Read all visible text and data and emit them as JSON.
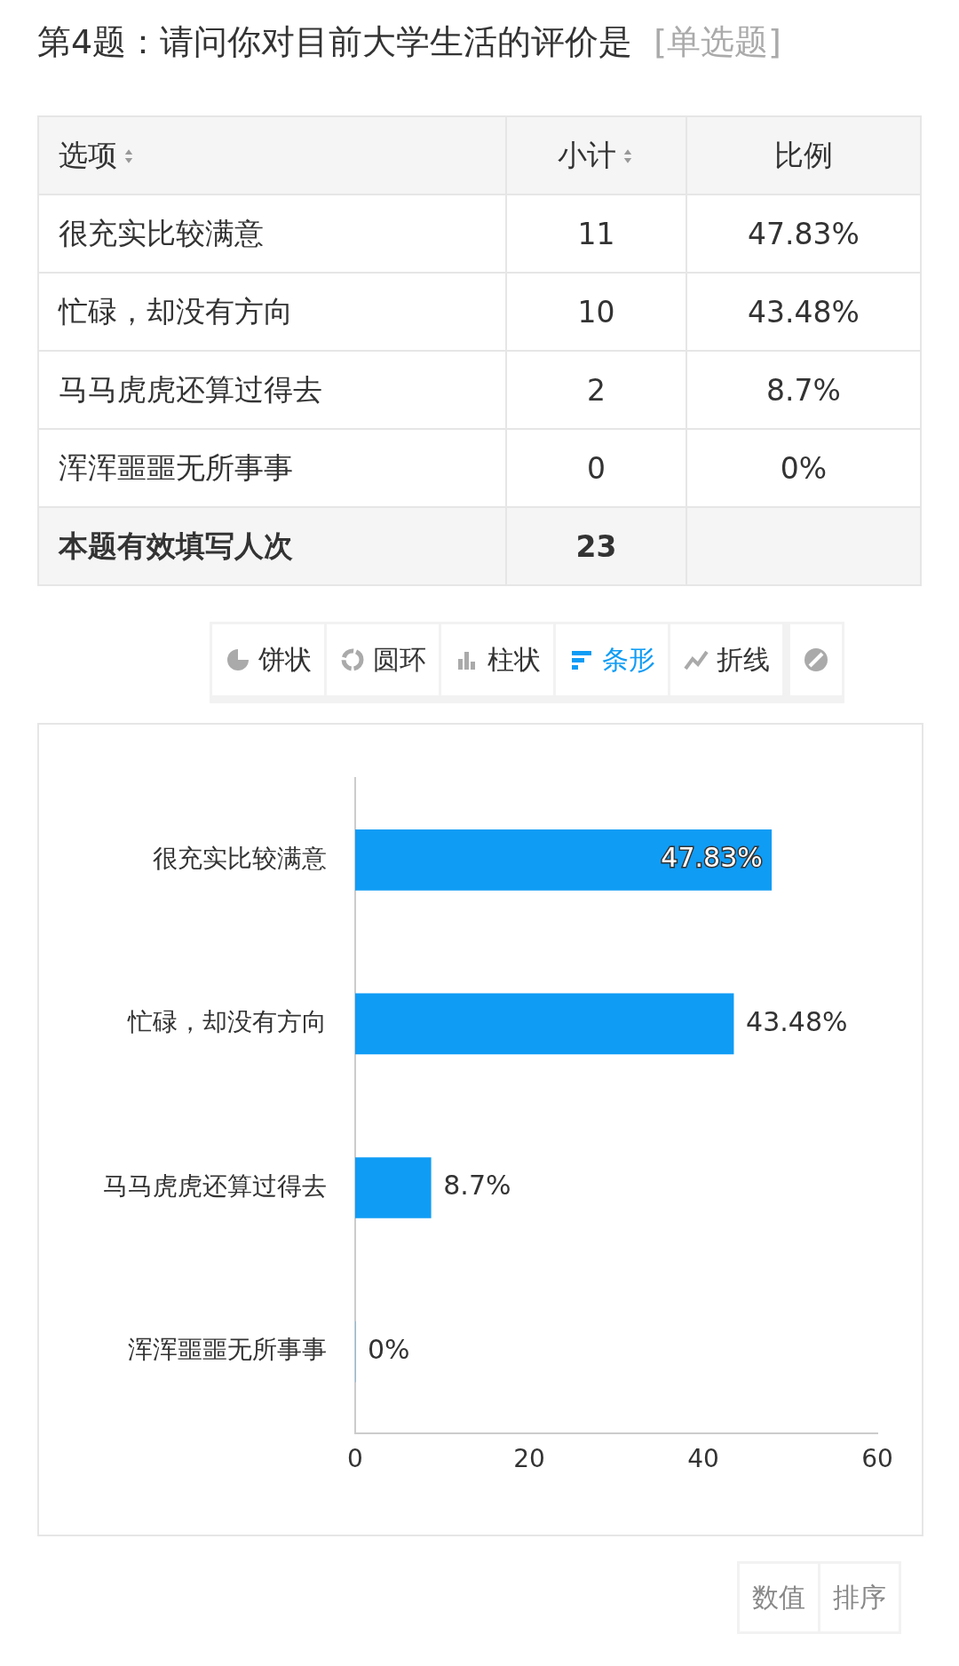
{
  "chart_data": [
    {
      "type": "other",
      "title": "第4题：请问你对目前大学生活的评价是",
      "subtitle": "[单选题]",
      "categories": [
        "很充实比较满意",
        "忙碌，却没有方向",
        "马马虎虎还算过得去",
        "浑浑噩噩无所事事"
      ],
      "series": [
        {
          "name": "小计",
          "values": [
            11,
            10,
            2,
            0
          ]
        },
        {
          "name": "比例",
          "values": [
            47.83,
            43.48,
            8.7,
            0
          ],
          "value_labels": [
            "47.83%",
            "43.48%",
            "8.7%",
            "0%"
          ]
        }
      ],
      "data_labels": true,
      "annotations": [
        "选项",
        "本题有效填写人次",
        "23"
      ]
    },
    {
      "type": "bar",
      "orientation": "horizontal",
      "categories": [
        "很充实比较满意",
        "忙碌，却没有方向",
        "马马虎虎还算过得去",
        "浑浑噩噩无所事事"
      ],
      "values": [
        47.83,
        43.48,
        8.7,
        0
      ],
      "color": "#0f9cf5",
      "value_labels": [
        "47.83%",
        "43.48%",
        "8.7%",
        "0%"
      ],
      "xlim": [
        0,
        60
      ],
      "xticks": [
        0,
        20,
        40,
        60
      ],
      "annotations": [
        "饼状",
        "圆环",
        "柱状",
        "条形",
        "折线",
        "数值",
        "排序"
      ]
    }
  ]
}
